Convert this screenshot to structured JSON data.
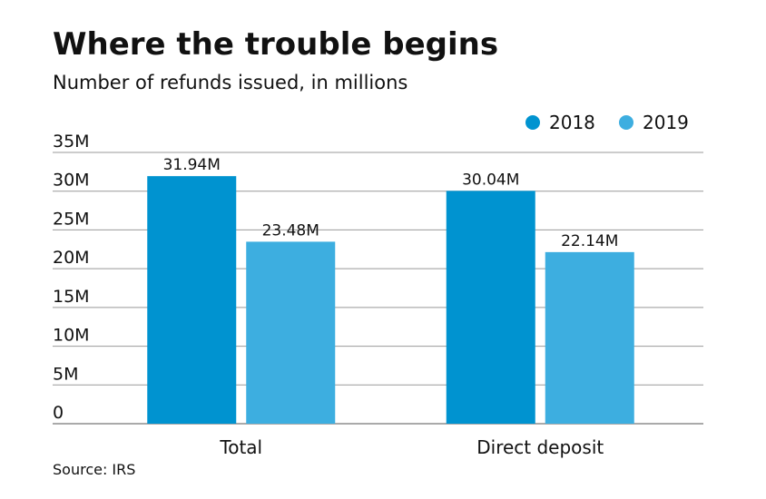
{
  "chart_data": {
    "type": "bar",
    "title": "Where the trouble begins",
    "subtitle": "Number of refunds issued, in millions",
    "source": "Source: IRS",
    "categories": [
      "Total",
      "Direct deposit"
    ],
    "series": [
      {
        "name": "2018",
        "color": "#0093d0",
        "values": [
          31.94,
          30.04
        ],
        "value_labels": [
          "31.94M",
          "30.04M"
        ]
      },
      {
        "name": "2019",
        "color": "#3daee0",
        "values": [
          23.48,
          22.14
        ],
        "value_labels": [
          "23.48M",
          "22.14M"
        ]
      }
    ],
    "ylim": [
      0,
      35
    ],
    "yticks": [
      0,
      {
        "value": 5,
        "label": "5M"
      },
      {
        "value": 10,
        "label": "10M"
      },
      {
        "value": 15,
        "label": "15M"
      },
      {
        "value": 20,
        "label": "20M"
      },
      {
        "value": 25,
        "label": "25M"
      },
      {
        "value": 30,
        "label": "30M"
      },
      {
        "value": 35,
        "label": "35M"
      }
    ],
    "grid": true,
    "legend": "top-right"
  }
}
